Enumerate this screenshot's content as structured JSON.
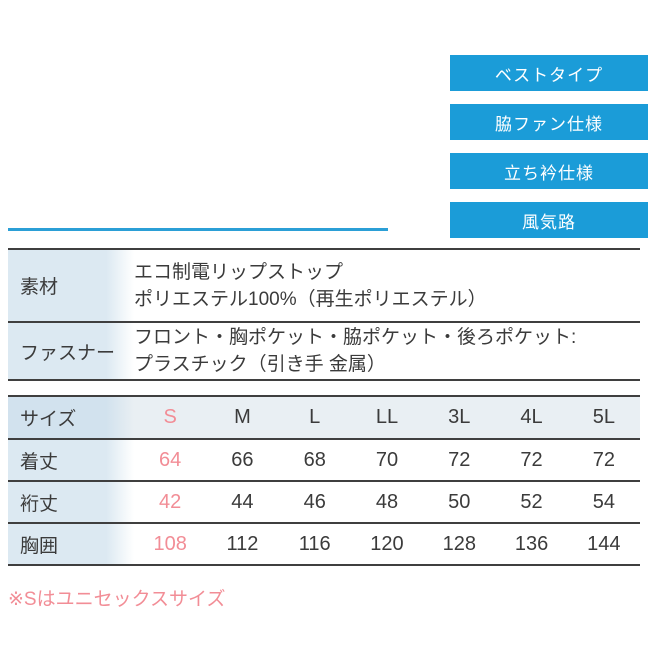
{
  "theme": {
    "badge_blue": "#1b9cd8",
    "line_blue": "#2b9fd6",
    "pink": "#f28d96",
    "text_dark": "#3b3b3b",
    "border_dark": "#3f3f3f",
    "label_bg": "#dce9f2",
    "label_bg_header": "#d2e2ee",
    "header_row_bg": "#e9eff3"
  },
  "badges": {
    "items": [
      {
        "label": "ベストタイプ"
      },
      {
        "label": "脇ファン仕様"
      },
      {
        "label": "立ち衿仕様"
      },
      {
        "label": "風気路"
      }
    ]
  },
  "spec_table": {
    "rows": [
      {
        "label": "素材",
        "lines": [
          "エコ制電リップストップ",
          "ポリエステル100%（再生ポリエステル）"
        ]
      },
      {
        "label": "ファスナー",
        "lines": [
          "フロント・胸ポケット・脇ポケット・後ろポケット:",
          "プラスチック（引き手 金属）"
        ]
      }
    ]
  },
  "size_table": {
    "header": {
      "label": "サイズ",
      "columns": [
        "S",
        "M",
        "L",
        "LL",
        "3L",
        "4L",
        "5L"
      ]
    },
    "rows": [
      {
        "label": "着丈",
        "values": [
          64,
          66,
          68,
          70,
          72,
          72,
          72
        ]
      },
      {
        "label": "裄丈",
        "values": [
          42,
          44,
          46,
          48,
          50,
          52,
          54
        ]
      },
      {
        "label": "胸囲",
        "values": [
          108,
          112,
          116,
          120,
          128,
          136,
          144
        ]
      }
    ],
    "highlight_column": "S"
  },
  "footnote": {
    "text": "※Sはユニセックスサイズ"
  }
}
